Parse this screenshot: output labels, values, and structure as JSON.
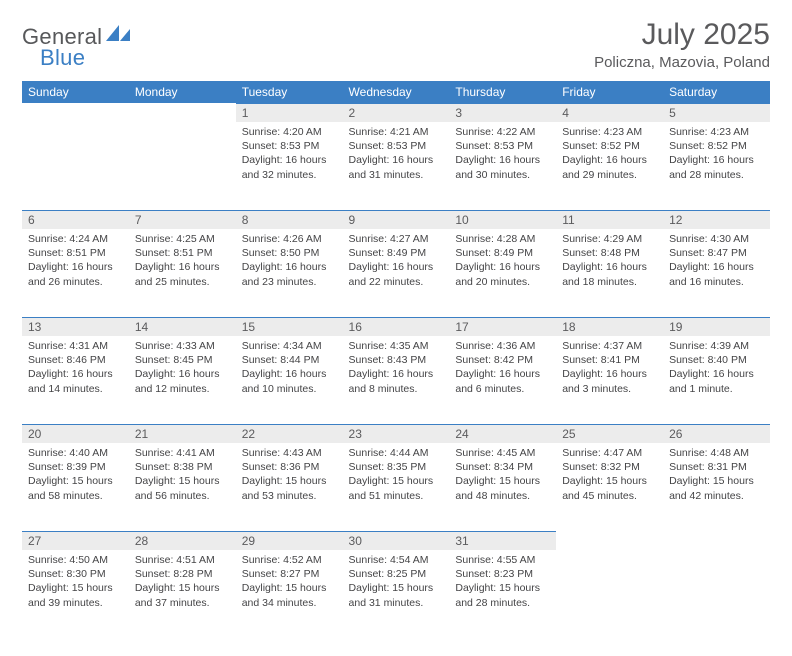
{
  "logo": {
    "text_general": "General",
    "text_blue": "Blue",
    "shape_color": "#3b7fc4"
  },
  "title": "July 2025",
  "location": "Policzna, Mazovia, Poland",
  "colors": {
    "header_bg": "#3b7fc4",
    "header_text": "#ffffff",
    "daynum_bg": "#ececec",
    "daynum_border": "#3b7fc4",
    "body_text": "#444446",
    "title_text": "#5a5a5c"
  },
  "columns": [
    "Sunday",
    "Monday",
    "Tuesday",
    "Wednesday",
    "Thursday",
    "Friday",
    "Saturday"
  ],
  "weeks": [
    [
      null,
      null,
      {
        "n": "1",
        "sr": "4:20 AM",
        "ss": "8:53 PM",
        "dl": "16 hours and 32 minutes."
      },
      {
        "n": "2",
        "sr": "4:21 AM",
        "ss": "8:53 PM",
        "dl": "16 hours and 31 minutes."
      },
      {
        "n": "3",
        "sr": "4:22 AM",
        "ss": "8:53 PM",
        "dl": "16 hours and 30 minutes."
      },
      {
        "n": "4",
        "sr": "4:23 AM",
        "ss": "8:52 PM",
        "dl": "16 hours and 29 minutes."
      },
      {
        "n": "5",
        "sr": "4:23 AM",
        "ss": "8:52 PM",
        "dl": "16 hours and 28 minutes."
      }
    ],
    [
      {
        "n": "6",
        "sr": "4:24 AM",
        "ss": "8:51 PM",
        "dl": "16 hours and 26 minutes."
      },
      {
        "n": "7",
        "sr": "4:25 AM",
        "ss": "8:51 PM",
        "dl": "16 hours and 25 minutes."
      },
      {
        "n": "8",
        "sr": "4:26 AM",
        "ss": "8:50 PM",
        "dl": "16 hours and 23 minutes."
      },
      {
        "n": "9",
        "sr": "4:27 AM",
        "ss": "8:49 PM",
        "dl": "16 hours and 22 minutes."
      },
      {
        "n": "10",
        "sr": "4:28 AM",
        "ss": "8:49 PM",
        "dl": "16 hours and 20 minutes."
      },
      {
        "n": "11",
        "sr": "4:29 AM",
        "ss": "8:48 PM",
        "dl": "16 hours and 18 minutes."
      },
      {
        "n": "12",
        "sr": "4:30 AM",
        "ss": "8:47 PM",
        "dl": "16 hours and 16 minutes."
      }
    ],
    [
      {
        "n": "13",
        "sr": "4:31 AM",
        "ss": "8:46 PM",
        "dl": "16 hours and 14 minutes."
      },
      {
        "n": "14",
        "sr": "4:33 AM",
        "ss": "8:45 PM",
        "dl": "16 hours and 12 minutes."
      },
      {
        "n": "15",
        "sr": "4:34 AM",
        "ss": "8:44 PM",
        "dl": "16 hours and 10 minutes."
      },
      {
        "n": "16",
        "sr": "4:35 AM",
        "ss": "8:43 PM",
        "dl": "16 hours and 8 minutes."
      },
      {
        "n": "17",
        "sr": "4:36 AM",
        "ss": "8:42 PM",
        "dl": "16 hours and 6 minutes."
      },
      {
        "n": "18",
        "sr": "4:37 AM",
        "ss": "8:41 PM",
        "dl": "16 hours and 3 minutes."
      },
      {
        "n": "19",
        "sr": "4:39 AM",
        "ss": "8:40 PM",
        "dl": "16 hours and 1 minute."
      }
    ],
    [
      {
        "n": "20",
        "sr": "4:40 AM",
        "ss": "8:39 PM",
        "dl": "15 hours and 58 minutes."
      },
      {
        "n": "21",
        "sr": "4:41 AM",
        "ss": "8:38 PM",
        "dl": "15 hours and 56 minutes."
      },
      {
        "n": "22",
        "sr": "4:43 AM",
        "ss": "8:36 PM",
        "dl": "15 hours and 53 minutes."
      },
      {
        "n": "23",
        "sr": "4:44 AM",
        "ss": "8:35 PM",
        "dl": "15 hours and 51 minutes."
      },
      {
        "n": "24",
        "sr": "4:45 AM",
        "ss": "8:34 PM",
        "dl": "15 hours and 48 minutes."
      },
      {
        "n": "25",
        "sr": "4:47 AM",
        "ss": "8:32 PM",
        "dl": "15 hours and 45 minutes."
      },
      {
        "n": "26",
        "sr": "4:48 AM",
        "ss": "8:31 PM",
        "dl": "15 hours and 42 minutes."
      }
    ],
    [
      {
        "n": "27",
        "sr": "4:50 AM",
        "ss": "8:30 PM",
        "dl": "15 hours and 39 minutes."
      },
      {
        "n": "28",
        "sr": "4:51 AM",
        "ss": "8:28 PM",
        "dl": "15 hours and 37 minutes."
      },
      {
        "n": "29",
        "sr": "4:52 AM",
        "ss": "8:27 PM",
        "dl": "15 hours and 34 minutes."
      },
      {
        "n": "30",
        "sr": "4:54 AM",
        "ss": "8:25 PM",
        "dl": "15 hours and 31 minutes."
      },
      {
        "n": "31",
        "sr": "4:55 AM",
        "ss": "8:23 PM",
        "dl": "15 hours and 28 minutes."
      },
      null,
      null
    ]
  ],
  "labels": {
    "sunrise": "Sunrise: ",
    "sunset": "Sunset: ",
    "daylight": "Daylight: "
  }
}
